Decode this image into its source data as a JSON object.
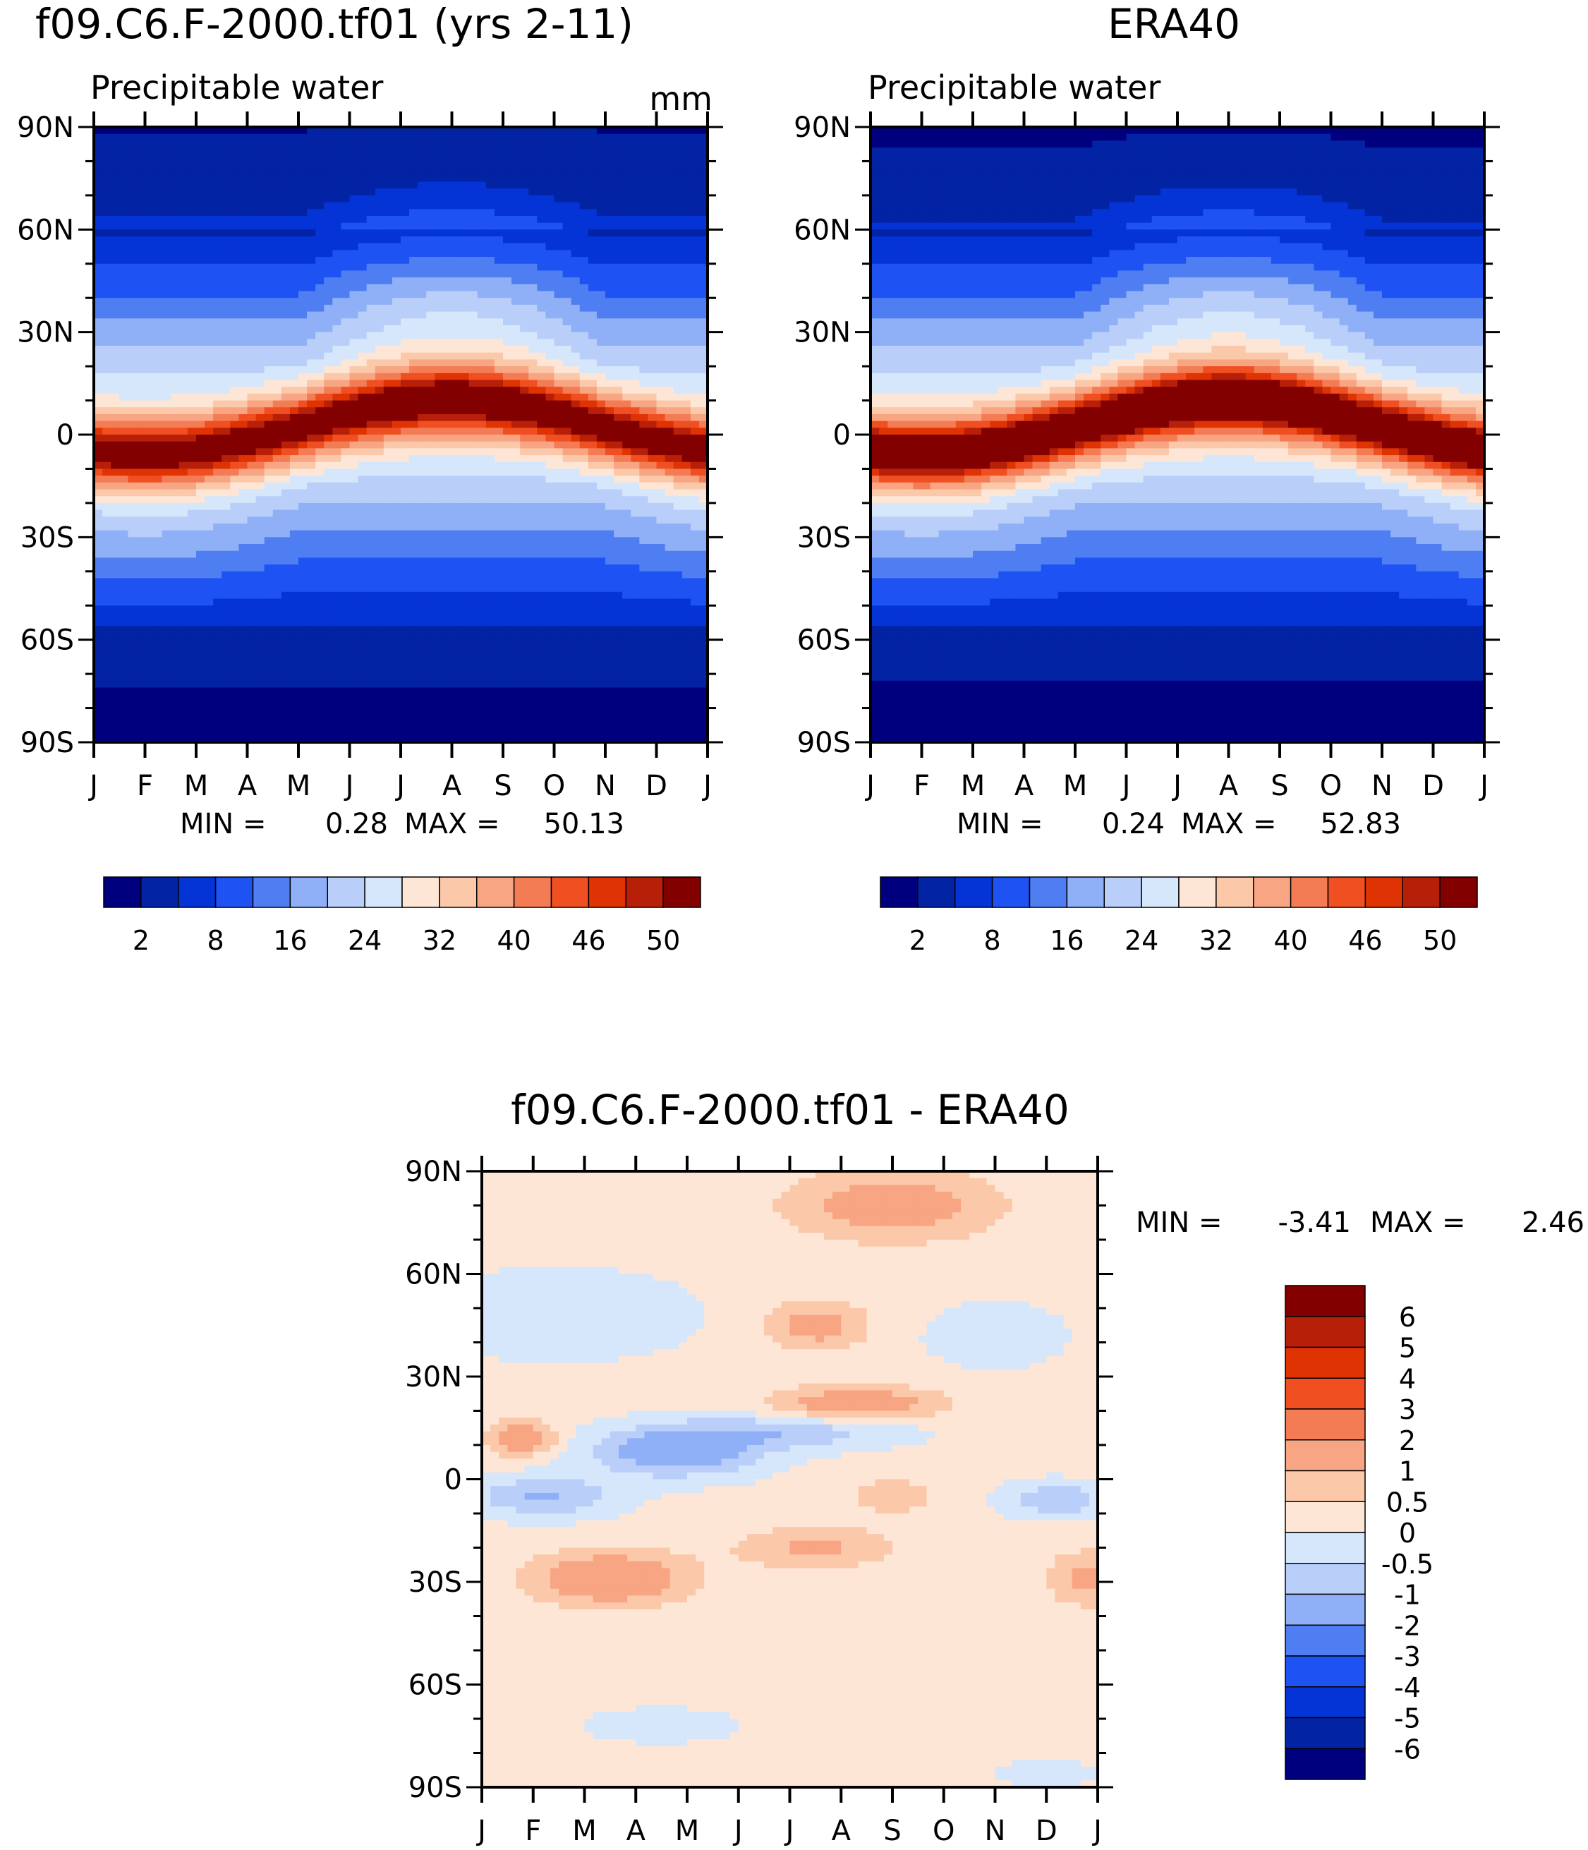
{
  "chart_data": [
    {
      "type": "heatmap",
      "title": "f09.C6.F-2000.tf01 (yrs 2-11)",
      "subtitle": "Precipitable water",
      "units": "mm",
      "x_ticks": [
        "J",
        "F",
        "M",
        "A",
        "M",
        "J",
        "J",
        "A",
        "S",
        "O",
        "N",
        "D",
        "J"
      ],
      "y_ticks": [
        "90N",
        "60N",
        "30N",
        "0",
        "30S",
        "60S",
        "90S"
      ],
      "min_label": "MIN =",
      "min_value": "0.28",
      "max_label": "MAX =",
      "max_value": "50.13",
      "colorbar_labels": [
        "2",
        "8",
        "16",
        "24",
        "32",
        "40",
        "46",
        "50"
      ],
      "colorbar_colors": [
        "#00007f",
        "#0223a3",
        "#0433d6",
        "#1f52f2",
        "#4f7ef2",
        "#8fb0f7",
        "#b9cff9",
        "#d6e6fb",
        "#fde6d6",
        "#fbc8aa",
        "#f8a583",
        "#f47c55",
        "#f04f22",
        "#df3303",
        "#b81f09",
        "#820000"
      ],
      "levels": [
        2,
        5,
        8,
        12,
        16,
        20,
        24,
        28,
        32,
        36,
        40,
        43,
        46,
        48,
        50
      ],
      "field": {
        "model": "A",
        "pole_n": 1.8,
        "pole_s": 0.8,
        "itcz_amp": 27,
        "itcz_lat": 2,
        "itcz_seasonal_shift": 8,
        "itcz_width": 11
      }
    },
    {
      "type": "heatmap",
      "title": "ERA40",
      "subtitle": "Precipitable water",
      "x_ticks": [
        "J",
        "F",
        "M",
        "A",
        "M",
        "J",
        "J",
        "A",
        "S",
        "O",
        "N",
        "D",
        "J"
      ],
      "y_ticks": [
        "90N",
        "60N",
        "30N",
        "0",
        "30S",
        "60S",
        "90S"
      ],
      "min_label": "MIN =",
      "min_value": "0.24",
      "max_label": "MAX =",
      "max_value": "52.83",
      "colorbar_labels": [
        "2",
        "8",
        "16",
        "24",
        "32",
        "40",
        "46",
        "50"
      ],
      "colorbar_colors": [
        "#00007f",
        "#0223a3",
        "#0433d6",
        "#1f52f2",
        "#4f7ef2",
        "#8fb0f7",
        "#b9cff9",
        "#d6e6fb",
        "#fde6d6",
        "#fbc8aa",
        "#f8a583",
        "#f47c55",
        "#f04f22",
        "#df3303",
        "#b81f09",
        "#820000"
      ],
      "levels": [
        2,
        5,
        8,
        12,
        16,
        20,
        24,
        28,
        32,
        36,
        40,
        43,
        46,
        48,
        50
      ],
      "field": {
        "model": "B",
        "pole_n": 1.6,
        "pole_s": 0.6,
        "itcz_amp": 30,
        "itcz_lat": 2,
        "itcz_seasonal_shift": 8,
        "itcz_width": 11
      }
    },
    {
      "type": "heatmap",
      "title": "f09.C6.F-2000.tf01 - ERA40",
      "x_ticks": [
        "J",
        "F",
        "M",
        "A",
        "M",
        "J",
        "J",
        "A",
        "S",
        "O",
        "N",
        "D",
        "J"
      ],
      "y_ticks": [
        "90N",
        "60N",
        "30N",
        "0",
        "30S",
        "60S",
        "90S"
      ],
      "min_label": "MIN =",
      "min_value": "-3.41",
      "max_label": "MAX =",
      "max_value": "2.46",
      "colorbar_labels": [
        "6",
        "5",
        "4",
        "3",
        "2",
        "1",
        "0.5",
        "0",
        "-0.5",
        "-1",
        "-2",
        "-3",
        "-4",
        "-5",
        "-6"
      ],
      "colorbar_colors": [
        "#820000",
        "#b81f09",
        "#df3303",
        "#f04f22",
        "#f47c55",
        "#f8a583",
        "#fbc8aa",
        "#fde6d6",
        "#d6e6fb",
        "#b9cff9",
        "#8fb0f7",
        "#4f7ef2",
        "#1f52f2",
        "#0433d6",
        "#0223a3",
        "#00007f"
      ],
      "levels": [
        -6,
        -5,
        -4,
        -3,
        -2,
        -1,
        -0.5,
        0,
        0.5,
        1,
        2,
        3,
        4,
        5,
        6
      ]
    }
  ]
}
